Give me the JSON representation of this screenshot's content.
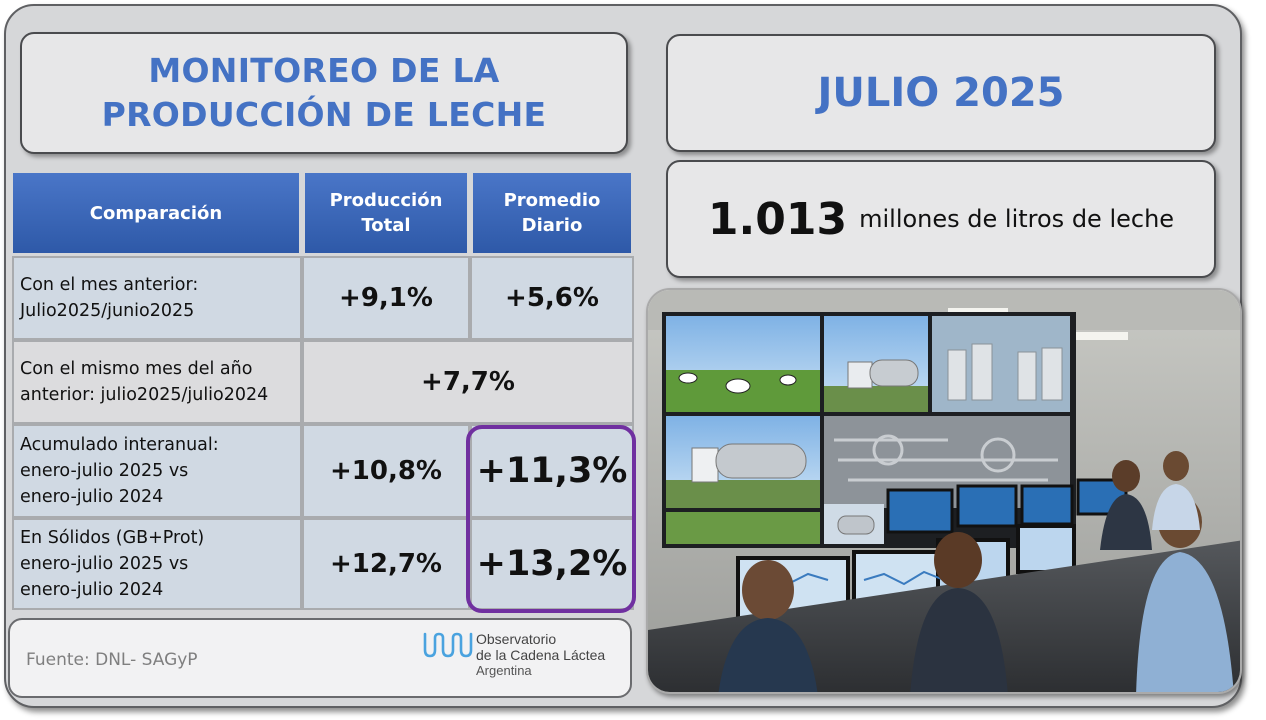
{
  "title": {
    "line1": "MONITOREO DE LA",
    "line2": "PRODUCCIÓN DE LECHE"
  },
  "period": "JULIO 2025",
  "total": {
    "value": "1.013",
    "unit": "millones de litros de leche"
  },
  "table": {
    "headers": {
      "col1": "Comparación",
      "col2_l1": "Producción",
      "col2_l2": "Total",
      "col3_l1": "Promedio",
      "col3_l2": "Diario"
    },
    "rows": [
      {
        "label_l1": "Con el mes anterior:",
        "label_l2": "Julio2025/junio2025",
        "total": "+9,1%",
        "daily": "+5,6%"
      },
      {
        "label_l1": "Con el mismo mes del año",
        "label_l2": "anterior: julio2025/julio2024",
        "merged": "+7,7%"
      },
      {
        "label_l1": "Acumulado interanual:",
        "label_l2": "enero-julio 2025 vs",
        "label_l3": "enero-julio 2024",
        "total": "+10,8%",
        "daily": "+11,3%"
      },
      {
        "label_l1": "En Sólidos (GB+Prot)",
        "label_l2": "enero-julio 2025 vs",
        "label_l3": "enero-julio 2024",
        "total": "+12,7%",
        "daily": "+13,2%"
      }
    ]
  },
  "source": "Fuente: DNL- SAGyP",
  "logo": {
    "line1": "Observatorio",
    "line2": "de la Cadena Láctea",
    "line3": "Argentina"
  },
  "colors": {
    "accent_blue": "#4472c4",
    "header_blue": "#2e59a8",
    "highlight_purple": "#7030a0"
  }
}
